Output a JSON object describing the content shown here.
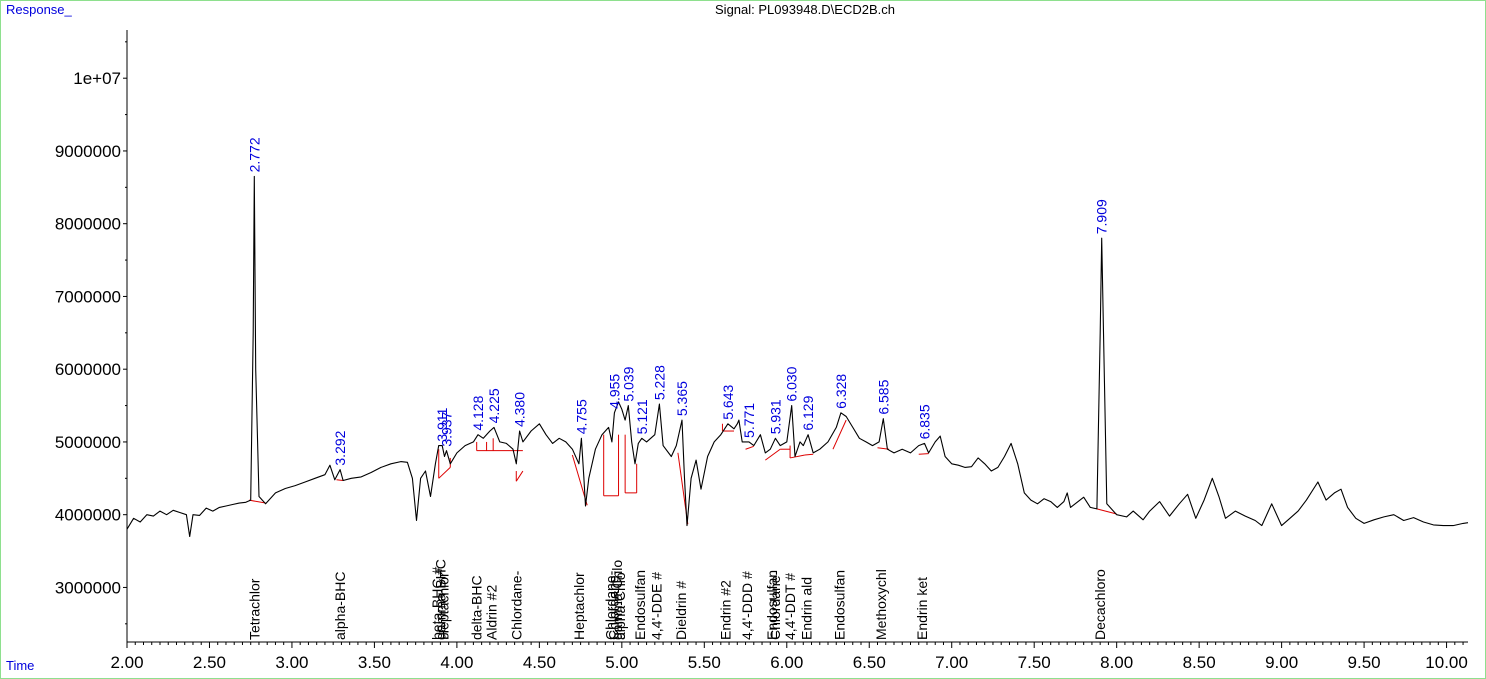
{
  "chart_data": {
    "type": "line",
    "title": "Signal: PL093948.D\\ECD2B.ch",
    "ylabel": "Response_",
    "xlabel": "Time",
    "xlim": [
      2.0,
      10.13
    ],
    "ylim": [
      2250000,
      10800000
    ],
    "x_ticks": [
      "2.00",
      "2.50",
      "3.00",
      "3.50",
      "4.00",
      "4.50",
      "5.00",
      "5.50",
      "6.00",
      "6.50",
      "7.00",
      "7.50",
      "8.00",
      "8.50",
      "9.00",
      "9.50",
      "10.00"
    ],
    "y_ticks": [
      "3000000",
      "4000000",
      "5000000",
      "6000000",
      "7000000",
      "8000000",
      "9000000",
      "1e+07"
    ],
    "colors": {
      "trace": "#000000",
      "integration": "#dd0000",
      "peak_label": "#0000dd",
      "axis_label": "#0000dd",
      "frame": "#8ee08e"
    },
    "peaks": [
      {
        "rt": "2.772",
        "response": 8650000
      },
      {
        "rt": "3.292",
        "response": 4620000
      },
      {
        "rt": "3.911",
        "response": 4950000
      },
      {
        "rt": "3.937",
        "response": 4880000
      },
      {
        "rt": "4.128",
        "response": 5100000
      },
      {
        "rt": "4.225",
        "response": 5200000
      },
      {
        "rt": "4.380",
        "response": 5150000
      },
      {
        "rt": "4.755",
        "response": 5050000
      },
      {
        "rt": "4.955",
        "response": 5400000
      },
      {
        "rt": "5.039",
        "response": 5500000
      },
      {
        "rt": "5.121",
        "response": 5050000
      },
      {
        "rt": "5.228",
        "response": 5520000
      },
      {
        "rt": "5.365",
        "response": 5300000
      },
      {
        "rt": "5.643",
        "response": 5250000
      },
      {
        "rt": "5.771",
        "response": 5000000
      },
      {
        "rt": "5.931",
        "response": 5050000
      },
      {
        "rt": "6.030",
        "response": 5500000
      },
      {
        "rt": "6.129",
        "response": 5100000
      },
      {
        "rt": "6.328",
        "response": 5400000
      },
      {
        "rt": "6.585",
        "response": 5320000
      },
      {
        "rt": "6.835",
        "response": 4980000
      },
      {
        "rt": "7.909",
        "response": 7800000
      }
    ],
    "compounds": [
      {
        "name": "Tetrachlor",
        "rt": 2.772
      },
      {
        "name": "alpha-BHC",
        "rt": 3.292
      },
      {
        "name": "beta-BHC #",
        "rt": 3.88
      },
      {
        "name": "gamma-BHC",
        "rt": 3.9
      },
      {
        "name": "Heptachlor",
        "rt": 3.92
      },
      {
        "name": "delta-BHC",
        "rt": 4.12
      },
      {
        "name": "Aldrin #2",
        "rt": 4.21
      },
      {
        "name": "Chlordane-",
        "rt": 4.36
      },
      {
        "name": "Heptachlor",
        "rt": 4.74
      },
      {
        "name": "Chlordane-",
        "rt": 4.93
      },
      {
        "name": "Chlordane-",
        "rt": 4.95
      },
      {
        "name": "gamma-Chlo",
        "rt": 4.97
      },
      {
        "name": "alpha-Chlo",
        "rt": 4.99
      },
      {
        "name": "Endosulfan",
        "rt": 5.11
      },
      {
        "name": "4,4'-DDE #",
        "rt": 5.21
      },
      {
        "name": "Dieldrin #",
        "rt": 5.36
      },
      {
        "name": "Endrin #2",
        "rt": 5.63
      },
      {
        "name": "4,4'-DDD #",
        "rt": 5.76
      },
      {
        "name": "Endosulfan",
        "rt": 5.91
      },
      {
        "name": "Chlordane-",
        "rt": 5.93
      },
      {
        "name": "4,4'-DDT #",
        "rt": 6.02
      },
      {
        "name": "Endrin ald",
        "rt": 6.12
      },
      {
        "name": "Endosulfan",
        "rt": 6.32
      },
      {
        "name": "Methoxychl",
        "rt": 6.57
      },
      {
        "name": "Endrin ket",
        "rt": 6.82
      },
      {
        "name": "Decachloro",
        "rt": 7.9
      }
    ],
    "trace": [
      [
        2.0,
        3800000
      ],
      [
        2.04,
        3950000
      ],
      [
        2.08,
        3900000
      ],
      [
        2.12,
        4000000
      ],
      [
        2.16,
        3980000
      ],
      [
        2.2,
        4050000
      ],
      [
        2.24,
        4000000
      ],
      [
        2.28,
        4060000
      ],
      [
        2.32,
        4030000
      ],
      [
        2.36,
        4000000
      ],
      [
        2.38,
        3700000
      ],
      [
        2.4,
        4000000
      ],
      [
        2.44,
        3990000
      ],
      [
        2.48,
        4090000
      ],
      [
        2.52,
        4050000
      ],
      [
        2.56,
        4100000
      ],
      [
        2.6,
        4120000
      ],
      [
        2.64,
        4140000
      ],
      [
        2.68,
        4160000
      ],
      [
        2.72,
        4170000
      ],
      [
        2.75,
        4200000
      ],
      [
        2.765,
        6500000
      ],
      [
        2.772,
        8650000
      ],
      [
        2.78,
        6000000
      ],
      [
        2.8,
        4250000
      ],
      [
        2.84,
        4150000
      ],
      [
        2.9,
        4300000
      ],
      [
        2.96,
        4360000
      ],
      [
        3.02,
        4400000
      ],
      [
        3.08,
        4450000
      ],
      [
        3.14,
        4500000
      ],
      [
        3.2,
        4550000
      ],
      [
        3.23,
        4680000
      ],
      [
        3.26,
        4480000
      ],
      [
        3.292,
        4620000
      ],
      [
        3.31,
        4470000
      ],
      [
        3.36,
        4500000
      ],
      [
        3.42,
        4520000
      ],
      [
        3.48,
        4580000
      ],
      [
        3.54,
        4650000
      ],
      [
        3.6,
        4700000
      ],
      [
        3.66,
        4730000
      ],
      [
        3.7,
        4720000
      ],
      [
        3.73,
        4500000
      ],
      [
        3.755,
        3920000
      ],
      [
        3.78,
        4500000
      ],
      [
        3.81,
        4600000
      ],
      [
        3.84,
        4250000
      ],
      [
        3.87,
        4700000
      ],
      [
        3.89,
        4950000
      ],
      [
        3.911,
        4950000
      ],
      [
        3.925,
        4800000
      ],
      [
        3.937,
        4880000
      ],
      [
        3.96,
        4700000
      ],
      [
        4.0,
        4850000
      ],
      [
        4.05,
        4950000
      ],
      [
        4.1,
        5000000
      ],
      [
        4.128,
        5100000
      ],
      [
        4.16,
        5050000
      ],
      [
        4.2,
        5150000
      ],
      [
        4.225,
        5200000
      ],
      [
        4.26,
        5000000
      ],
      [
        4.3,
        4980000
      ],
      [
        4.34,
        4900000
      ],
      [
        4.36,
        4700000
      ],
      [
        4.38,
        5150000
      ],
      [
        4.4,
        5000000
      ],
      [
        4.45,
        5150000
      ],
      [
        4.5,
        5250000
      ],
      [
        4.54,
        5100000
      ],
      [
        4.58,
        4980000
      ],
      [
        4.62,
        5050000
      ],
      [
        4.66,
        5000000
      ],
      [
        4.7,
        4900000
      ],
      [
        4.74,
        4700000
      ],
      [
        4.755,
        5050000
      ],
      [
        4.77,
        4500000
      ],
      [
        4.78,
        4120000
      ],
      [
        4.8,
        4500000
      ],
      [
        4.84,
        4900000
      ],
      [
        4.88,
        5100000
      ],
      [
        4.92,
        5200000
      ],
      [
        4.94,
        5000000
      ],
      [
        4.955,
        5400000
      ],
      [
        4.98,
        5550000
      ],
      [
        5.0,
        5450000
      ],
      [
        5.02,
        5300000
      ],
      [
        5.039,
        5500000
      ],
      [
        5.06,
        5000000
      ],
      [
        5.08,
        4700000
      ],
      [
        5.1,
        4980000
      ],
      [
        5.121,
        5050000
      ],
      [
        5.15,
        5000000
      ],
      [
        5.2,
        5100000
      ],
      [
        5.228,
        5520000
      ],
      [
        5.25,
        4950000
      ],
      [
        5.3,
        4800000
      ],
      [
        5.33,
        4950000
      ],
      [
        5.365,
        5300000
      ],
      [
        5.38,
        4500000
      ],
      [
        5.395,
        3850000
      ],
      [
        5.42,
        4500000
      ],
      [
        5.45,
        4750000
      ],
      [
        5.48,
        4350000
      ],
      [
        5.52,
        4800000
      ],
      [
        5.56,
        5000000
      ],
      [
        5.6,
        5100000
      ],
      [
        5.643,
        5250000
      ],
      [
        5.68,
        5180000
      ],
      [
        5.7,
        5250000
      ],
      [
        5.71,
        5300000
      ],
      [
        5.73,
        5000000
      ],
      [
        5.771,
        5000000
      ],
      [
        5.8,
        4950000
      ],
      [
        5.84,
        5100000
      ],
      [
        5.87,
        4850000
      ],
      [
        5.9,
        4900000
      ],
      [
        5.931,
        5050000
      ],
      [
        5.96,
        4950000
      ],
      [
        6.0,
        5000000
      ],
      [
        6.03,
        5500000
      ],
      [
        6.05,
        4800000
      ],
      [
        6.08,
        5000000
      ],
      [
        6.1,
        4950000
      ],
      [
        6.129,
        5100000
      ],
      [
        6.16,
        4850000
      ],
      [
        6.2,
        4900000
      ],
      [
        6.25,
        5000000
      ],
      [
        6.3,
        5200000
      ],
      [
        6.328,
        5400000
      ],
      [
        6.36,
        5350000
      ],
      [
        6.4,
        5200000
      ],
      [
        6.44,
        5050000
      ],
      [
        6.48,
        5000000
      ],
      [
        6.52,
        4950000
      ],
      [
        6.56,
        5000000
      ],
      [
        6.585,
        5320000
      ],
      [
        6.61,
        4900000
      ],
      [
        6.65,
        4850000
      ],
      [
        6.7,
        4900000
      ],
      [
        6.75,
        4850000
      ],
      [
        6.8,
        4950000
      ],
      [
        6.835,
        4980000
      ],
      [
        6.86,
        4850000
      ],
      [
        6.9,
        5000000
      ],
      [
        6.93,
        5080000
      ],
      [
        6.96,
        4800000
      ],
      [
        7.0,
        4700000
      ],
      [
        7.04,
        4680000
      ],
      [
        7.08,
        4650000
      ],
      [
        7.12,
        4660000
      ],
      [
        7.16,
        4780000
      ],
      [
        7.2,
        4700000
      ],
      [
        7.24,
        4600000
      ],
      [
        7.28,
        4650000
      ],
      [
        7.32,
        4800000
      ],
      [
        7.36,
        4980000
      ],
      [
        7.4,
        4700000
      ],
      [
        7.44,
        4300000
      ],
      [
        7.48,
        4200000
      ],
      [
        7.52,
        4150000
      ],
      [
        7.56,
        4220000
      ],
      [
        7.6,
        4180000
      ],
      [
        7.64,
        4100000
      ],
      [
        7.68,
        4180000
      ],
      [
        7.7,
        4300000
      ],
      [
        7.72,
        4100000
      ],
      [
        7.76,
        4170000
      ],
      [
        7.8,
        4240000
      ],
      [
        7.84,
        4100000
      ],
      [
        7.88,
        4080000
      ],
      [
        7.9,
        6500000
      ],
      [
        7.909,
        7800000
      ],
      [
        7.92,
        6500000
      ],
      [
        7.94,
        4150000
      ],
      [
        8.0,
        4000000
      ],
      [
        8.06,
        3970000
      ],
      [
        8.1,
        4050000
      ],
      [
        8.16,
        3930000
      ],
      [
        8.2,
        4050000
      ],
      [
        8.26,
        4180000
      ],
      [
        8.32,
        3980000
      ],
      [
        8.38,
        4150000
      ],
      [
        8.43,
        4280000
      ],
      [
        8.48,
        3950000
      ],
      [
        8.53,
        4200000
      ],
      [
        8.58,
        4500000
      ],
      [
        8.62,
        4250000
      ],
      [
        8.66,
        3950000
      ],
      [
        8.72,
        4050000
      ],
      [
        8.78,
        3980000
      ],
      [
        8.84,
        3920000
      ],
      [
        8.88,
        3850000
      ],
      [
        8.94,
        4150000
      ],
      [
        9.0,
        3850000
      ],
      [
        9.05,
        3950000
      ],
      [
        9.1,
        4050000
      ],
      [
        9.15,
        4200000
      ],
      [
        9.22,
        4450000
      ],
      [
        9.27,
        4200000
      ],
      [
        9.32,
        4300000
      ],
      [
        9.36,
        4350000
      ],
      [
        9.4,
        4100000
      ],
      [
        9.45,
        3950000
      ],
      [
        9.5,
        3880000
      ],
      [
        9.56,
        3930000
      ],
      [
        9.62,
        3970000
      ],
      [
        9.68,
        4000000
      ],
      [
        9.74,
        3920000
      ],
      [
        9.8,
        3960000
      ],
      [
        9.86,
        3900000
      ],
      [
        9.92,
        3860000
      ],
      [
        9.98,
        3850000
      ],
      [
        10.04,
        3850000
      ],
      [
        10.1,
        3880000
      ],
      [
        10.13,
        3890000
      ]
    ],
    "integration": [
      [
        [
          2.74,
          4200000
        ],
        [
          2.84,
          4160000
        ]
      ],
      [
        [
          3.27,
          4480000
        ],
        [
          3.31,
          4470000
        ]
      ],
      [
        [
          3.89,
          4500000
        ],
        [
          3.89,
          4900000
        ]
      ],
      [
        [
          3.89,
          4500000
        ],
        [
          3.96,
          4650000
        ]
      ],
      [
        [
          3.96,
          4650000
        ],
        [
          3.96,
          4780000
        ]
      ],
      [
        [
          4.12,
          4880000
        ],
        [
          4.12,
          5000000
        ]
      ],
      [
        [
          4.12,
          4880000
        ],
        [
          4.4,
          4880000
        ]
      ],
      [
        [
          4.18,
          4880000
        ],
        [
          4.18,
          5000000
        ]
      ],
      [
        [
          4.22,
          4880000
        ],
        [
          4.22,
          5050000
        ]
      ],
      [
        [
          4.36,
          4460000
        ],
        [
          4.4,
          4600000
        ]
      ],
      [
        [
          4.36,
          4460000
        ],
        [
          4.36,
          4600000
        ]
      ],
      [
        [
          4.7,
          4820000
        ],
        [
          4.79,
          4130000
        ]
      ],
      [
        [
          4.89,
          4260000
        ],
        [
          4.89,
          5100000
        ]
      ],
      [
        [
          4.89,
          4260000
        ],
        [
          4.98,
          4260000
        ]
      ],
      [
        [
          4.98,
          4260000
        ],
        [
          4.98,
          5100000
        ]
      ],
      [
        [
          5.02,
          4300000
        ],
        [
          5.02,
          5100000
        ]
      ],
      [
        [
          5.02,
          4300000
        ],
        [
          5.09,
          4300000
        ]
      ],
      [
        [
          5.09,
          4300000
        ],
        [
          5.09,
          4700000
        ]
      ],
      [
        [
          5.34,
          4850000
        ],
        [
          5.4,
          3870000
        ]
      ],
      [
        [
          5.61,
          5150000
        ],
        [
          5.68,
          5150000
        ]
      ],
      [
        [
          5.61,
          5150000
        ],
        [
          5.61,
          5250000
        ]
      ],
      [
        [
          5.75,
          4900000
        ],
        [
          5.8,
          4940000
        ]
      ],
      [
        [
          5.87,
          4750000
        ],
        [
          5.96,
          4900000
        ]
      ],
      [
        [
          5.96,
          4900000
        ],
        [
          6.02,
          4900000
        ]
      ],
      [
        [
          6.02,
          4780000
        ],
        [
          6.02,
          4950000
        ]
      ],
      [
        [
          6.02,
          4780000
        ],
        [
          6.11,
          4820000
        ]
      ],
      [
        [
          6.11,
          4820000
        ],
        [
          6.16,
          4830000
        ]
      ],
      [
        [
          6.28,
          4900000
        ],
        [
          6.36,
          5300000
        ]
      ],
      [
        [
          6.55,
          4920000
        ],
        [
          6.62,
          4900000
        ]
      ],
      [
        [
          6.8,
          4830000
        ],
        [
          6.86,
          4840000
        ]
      ],
      [
        [
          7.88,
          4080000
        ],
        [
          8.0,
          4010000
        ]
      ]
    ]
  }
}
